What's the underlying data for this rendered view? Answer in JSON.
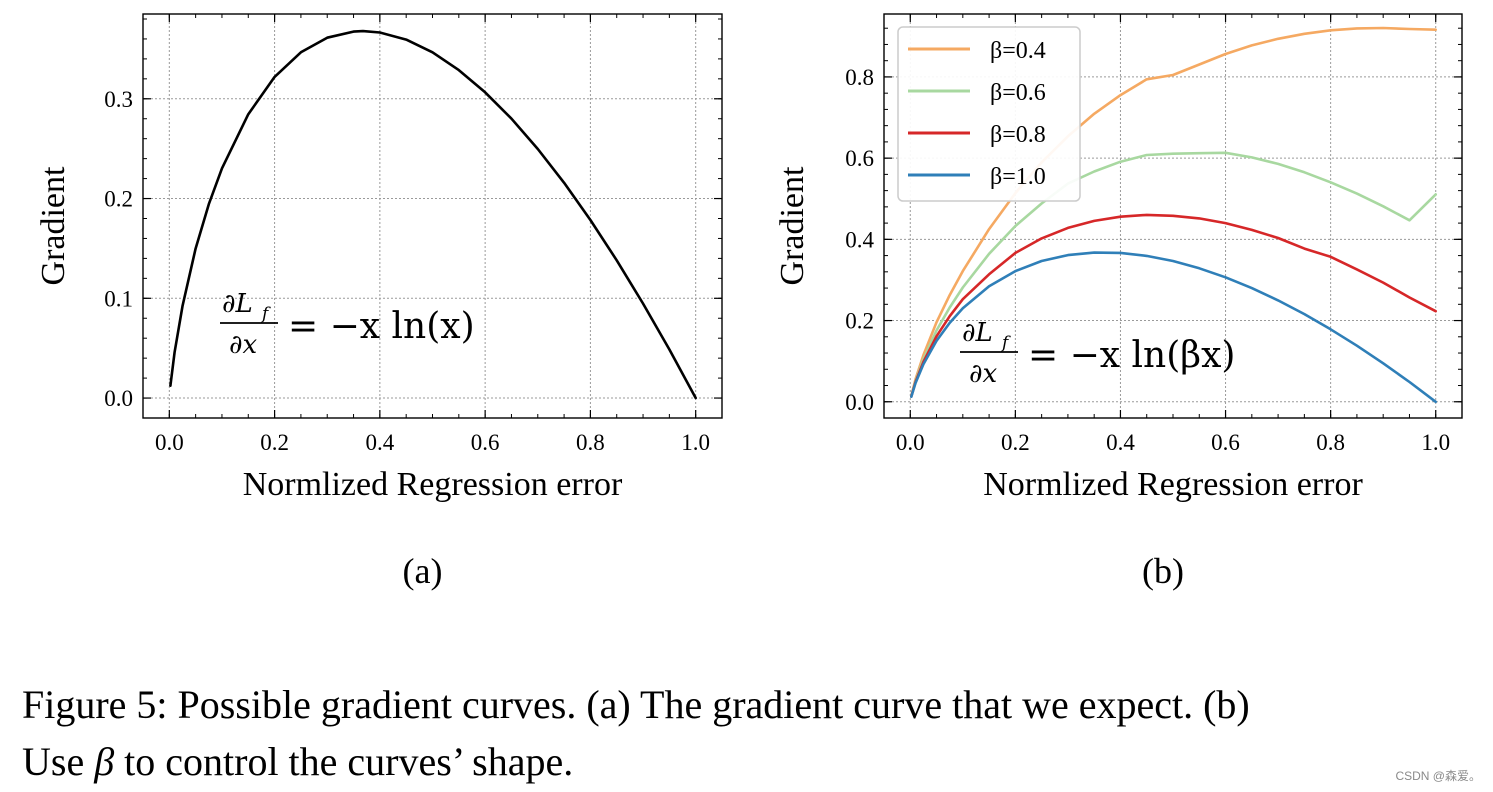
{
  "chart_data": [
    {
      "type": "line",
      "panel_label": "(a)",
      "xlabel": "Normlized Regression error",
      "ylabel": "Gradient",
      "xlim": [
        -0.05,
        1.05
      ],
      "ylim": [
        -0.02,
        0.385
      ],
      "xticks": [
        0.0,
        0.2,
        0.4,
        0.6,
        0.8,
        1.0
      ],
      "xtick_labels": [
        "0.0",
        "0.2",
        "0.4",
        "0.6",
        "0.8",
        "1.0"
      ],
      "yticks": [
        0.0,
        0.1,
        0.2,
        0.3
      ],
      "ytick_labels": [
        "0.0",
        "0.1",
        "0.2",
        "0.3"
      ],
      "grid": true,
      "annotation": {
        "numerator": "∂L",
        "numerator_sub": "f",
        "denominator": "∂x",
        "rhs": "= −x ln(x)"
      },
      "x": [
        0.002,
        0.01,
        0.025,
        0.05,
        0.075,
        0.1,
        0.15,
        0.2,
        0.25,
        0.3,
        0.35,
        0.368,
        0.4,
        0.45,
        0.5,
        0.55,
        0.6,
        0.65,
        0.7,
        0.75,
        0.8,
        0.85,
        0.9,
        0.95,
        1.0
      ],
      "series": [
        {
          "color": "#000000",
          "values": [
            0.0124,
            0.046,
            0.0922,
            0.1498,
            0.1943,
            0.2303,
            0.2846,
            0.3219,
            0.3466,
            0.3612,
            0.3674,
            0.3679,
            0.3665,
            0.3593,
            0.3466,
            0.3288,
            0.3065,
            0.28,
            0.2497,
            0.2158,
            0.1785,
            0.1381,
            0.0948,
            0.0487,
            0.0
          ]
        }
      ]
    },
    {
      "type": "line",
      "panel_label": "(b)",
      "xlabel": "Normlized Regression error",
      "ylabel": "Gradient",
      "xlim": [
        -0.05,
        1.05
      ],
      "ylim": [
        -0.04,
        0.955
      ],
      "xticks": [
        0.0,
        0.2,
        0.4,
        0.6,
        0.8,
        1.0
      ],
      "xtick_labels": [
        "0.0",
        "0.2",
        "0.4",
        "0.6",
        "0.8",
        "1.0"
      ],
      "yticks": [
        0.0,
        0.2,
        0.4,
        0.6,
        0.8
      ],
      "ytick_labels": [
        "0.0",
        "0.2",
        "0.4",
        "0.6",
        "0.8"
      ],
      "grid": true,
      "legend_position": "top-left",
      "annotation": {
        "numerator": "∂L",
        "numerator_sub": "f",
        "denominator": "∂x",
        "rhs": "= −x ln(βx)"
      },
      "x": [
        0.002,
        0.01,
        0.025,
        0.05,
        0.075,
        0.1,
        0.15,
        0.2,
        0.25,
        0.3,
        0.35,
        0.4,
        0.45,
        0.5,
        0.55,
        0.6,
        0.65,
        0.7,
        0.75,
        0.8,
        0.85,
        0.9,
        0.95,
        1.0
      ],
      "series": [
        {
          "name": "β=0.4",
          "color": "#f5a962",
          "values": [
            0.0142,
            0.0552,
            0.115,
            0.1956,
            0.2627,
            0.3219,
            0.4253,
            0.5139,
            0.5895,
            0.6537,
            0.7092,
            0.7552,
            0.7941,
            0.8047,
            0.8306,
            0.8566,
            0.8776,
            0.8939,
            0.9062,
            0.9148,
            0.9195,
            0.9205,
            0.918,
            0.9163
          ]
        },
        {
          "name": "β=0.6",
          "color": "#a8d8a0",
          "values": [
            0.0134,
            0.0511,
            0.1047,
            0.1754,
            0.2322,
            0.2813,
            0.3645,
            0.4329,
            0.4883,
            0.5372,
            0.5671,
            0.5913,
            0.6077,
            0.6109,
            0.6121,
            0.6131,
            0.6018,
            0.5857,
            0.5651,
            0.5406,
            0.5126,
            0.4813,
            0.4468,
            0.5108
          ]
        },
        {
          "name": "β=0.8",
          "color": "#d62728",
          "values": [
            0.0129,
            0.0483,
            0.0978,
            0.1613,
            0.2107,
            0.2526,
            0.3138,
            0.3665,
            0.4024,
            0.4281,
            0.4454,
            0.4558,
            0.4601,
            0.4581,
            0.4515,
            0.44,
            0.4232,
            0.4033,
            0.3771,
            0.3571,
            0.326,
            0.2935,
            0.2568,
            0.2231
          ]
        },
        {
          "name": "β=1.0",
          "color": "#2f7fb8",
          "values": [
            0.0124,
            0.046,
            0.0922,
            0.1498,
            0.1943,
            0.2303,
            0.2846,
            0.3219,
            0.3466,
            0.3612,
            0.3674,
            0.3665,
            0.3593,
            0.3466,
            0.3288,
            0.3065,
            0.28,
            0.2497,
            0.2158,
            0.1785,
            0.1381,
            0.0948,
            0.0487,
            0.0
          ]
        }
      ]
    }
  ],
  "caption": {
    "line1": "Figure 5: Possible gradient curves. (a) The gradient curve that we expect. (b)",
    "line2_pre": "Use ",
    "line2_beta": "β",
    "line2_post": " to control the curves’ shape."
  },
  "watermark": "CSDN @森爱。"
}
